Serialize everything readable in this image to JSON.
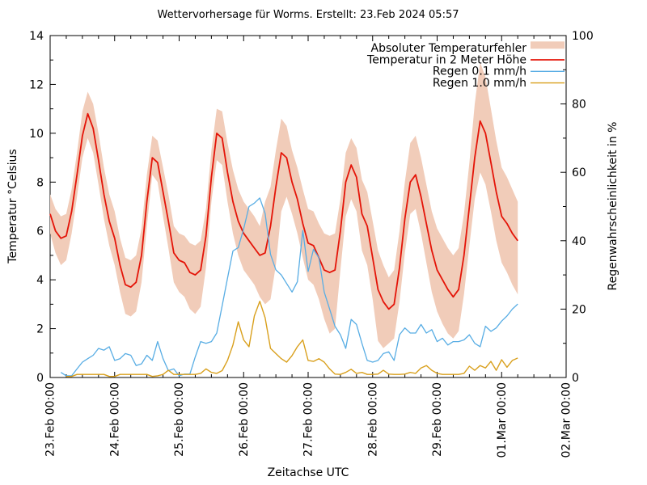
{
  "title": "Wettervorhersage für Worms. Erstellt: 23.Feb 2024 05:57",
  "axes": {
    "x": {
      "label": "Zeitachse UTC",
      "range_hours": [
        0,
        192
      ],
      "major_step_hours": 24,
      "minor_step_hours": 6,
      "tick_labels": [
        "23.Feb 00:00",
        "24.Feb 00:00",
        "25.Feb 00:00",
        "26.Feb 00:00",
        "27.Feb 00:00",
        "28.Feb 00:00",
        "29.Feb 00:00",
        "01.Mar 00:00",
        "02.Mar 00:00"
      ]
    },
    "y_left": {
      "label": "Temperatur °Celsius",
      "range": [
        0,
        14
      ],
      "ticks": [
        0,
        2,
        4,
        6,
        8,
        10,
        12,
        14
      ],
      "minor_step": 1
    },
    "y_right": {
      "label": "Regenwahrscheinlichkeit in %",
      "range": [
        0,
        100
      ],
      "ticks": [
        0,
        20,
        40,
        60,
        80,
        100
      ],
      "minor_step": 10
    }
  },
  "legend": {
    "position": "top-right-inside",
    "items": [
      {
        "label": "Absoluter Temperaturfehler",
        "swatch": "band",
        "color": "#f1ccb9"
      },
      {
        "label": "Temperatur in 2 Meter Höhe",
        "swatch": "line",
        "color": "#e41408"
      },
      {
        "label": "Regen 0.1 mm/h",
        "swatch": "line",
        "color": "#58ade4"
      },
      {
        "label": "Regen 1.0 mm/h",
        "swatch": "line",
        "color": "#d9a01d"
      }
    ]
  },
  "colors": {
    "background": "#ffffff",
    "border": "#000000",
    "error_band": "#f1ccb9",
    "temperature": "#e41408",
    "rain01": "#58ade4",
    "rain10": "#d9a01d"
  },
  "chart_data": {
    "type": "line",
    "title": "Wettervorhersage für Worms. Erstellt: 23.Feb 2024 05:57",
    "xlabel": "Zeitachse UTC",
    "ylabel_left": "Temperatur °Celsius",
    "ylabel_right": "Regenwahrscheinlichkeit in %",
    "x_axis_days": [
      "23.Feb",
      "24.Feb",
      "25.Feb",
      "26.Feb",
      "27.Feb",
      "28.Feb",
      "29.Feb",
      "01.Mar",
      "02.Mar"
    ],
    "xlim_hours": [
      0,
      192
    ],
    "ylim_left": [
      0,
      14
    ],
    "ylim_right": [
      0,
      100
    ],
    "grid": false,
    "x_hours": [
      0,
      2,
      4,
      6,
      8,
      10,
      12,
      14,
      16,
      18,
      20,
      22,
      24,
      26,
      28,
      30,
      32,
      34,
      36,
      38,
      40,
      42,
      44,
      46,
      48,
      50,
      52,
      54,
      56,
      58,
      60,
      62,
      64,
      66,
      68,
      70,
      72,
      74,
      76,
      78,
      80,
      82,
      84,
      86,
      88,
      90,
      92,
      94,
      96,
      98,
      100,
      102,
      104,
      106,
      108,
      110,
      112,
      114,
      116,
      118,
      120,
      122,
      124,
      126,
      128,
      130,
      132,
      134,
      136,
      138,
      140,
      142,
      144,
      146,
      148,
      150,
      152,
      154,
      156,
      158,
      160,
      162,
      164,
      166,
      168,
      170,
      172,
      174
    ],
    "series": [
      {
        "name": "Absoluter Temperaturfehler",
        "type": "band",
        "axis": "left",
        "color": "#f1ccb9",
        "lower": [
          5.9,
          5.1,
          4.6,
          4.8,
          5.9,
          7.4,
          9.0,
          9.8,
          9.2,
          7.9,
          6.5,
          5.4,
          4.6,
          3.5,
          2.6,
          2.5,
          2.7,
          3.9,
          6.2,
          8.3,
          8.0,
          6.6,
          5.3,
          3.9,
          3.5,
          3.3,
          2.8,
          2.6,
          2.9,
          4.5,
          7.2,
          8.9,
          8.7,
          7.2,
          5.9,
          5.0,
          4.4,
          4.1,
          3.8,
          3.3,
          3.0,
          3.2,
          4.6,
          6.8,
          7.4,
          6.7,
          5.9,
          4.9,
          4.0,
          3.8,
          3.2,
          2.4,
          1.8,
          2.0,
          4.4,
          6.6,
          7.3,
          6.8,
          5.2,
          4.6,
          3.2,
          1.5,
          1.2,
          1.4,
          1.6,
          3.1,
          5.1,
          6.7,
          6.9,
          5.9,
          4.7,
          3.5,
          2.7,
          2.2,
          1.8,
          1.6,
          1.9,
          3.4,
          5.4,
          7.3,
          8.4,
          7.9,
          6.8,
          5.6,
          4.7,
          4.3,
          3.8,
          3.4
        ],
        "upper": [
          7.5,
          6.9,
          6.6,
          6.7,
          7.7,
          9.2,
          10.9,
          11.7,
          11.2,
          10.0,
          8.6,
          7.5,
          6.8,
          5.7,
          4.9,
          4.8,
          5.0,
          6.1,
          8.3,
          9.9,
          9.7,
          8.6,
          7.5,
          6.2,
          5.9,
          5.8,
          5.5,
          5.4,
          5.6,
          6.9,
          9.3,
          11.0,
          10.9,
          9.6,
          8.5,
          7.7,
          7.2,
          6.9,
          6.6,
          6.2,
          7.2,
          7.8,
          9.3,
          10.6,
          10.3,
          9.3,
          8.6,
          7.7,
          6.9,
          6.8,
          6.3,
          5.9,
          5.8,
          5.9,
          7.3,
          9.2,
          9.8,
          9.4,
          8.1,
          7.6,
          6.4,
          5.2,
          4.6,
          4.1,
          4.4,
          6.0,
          8.0,
          9.6,
          9.9,
          9.0,
          7.9,
          6.8,
          6.1,
          5.7,
          5.3,
          5.0,
          5.3,
          6.7,
          8.8,
          11.2,
          12.9,
          12.3,
          11.0,
          9.7,
          8.6,
          8.2,
          7.7,
          7.2
        ]
      },
      {
        "name": "Temperatur in 2 Meter Höhe",
        "type": "line",
        "axis": "left",
        "color": "#e41408",
        "values": [
          6.7,
          6.0,
          5.7,
          5.8,
          6.8,
          8.3,
          9.9,
          10.8,
          10.2,
          8.9,
          7.5,
          6.4,
          5.7,
          4.6,
          3.8,
          3.7,
          3.9,
          5.0,
          7.2,
          9.0,
          8.8,
          7.6,
          6.4,
          5.1,
          4.8,
          4.7,
          4.3,
          4.2,
          4.4,
          5.8,
          8.2,
          10.0,
          9.8,
          8.4,
          7.2,
          6.4,
          5.9,
          5.6,
          5.3,
          5.0,
          5.1,
          6.2,
          7.8,
          9.2,
          9.0,
          8.0,
          7.3,
          6.3,
          5.5,
          5.4,
          4.9,
          4.4,
          4.3,
          4.4,
          6.0,
          8.0,
          8.7,
          8.2,
          6.7,
          6.2,
          4.9,
          3.6,
          3.1,
          2.8,
          3.0,
          4.5,
          6.5,
          8.0,
          8.3,
          7.4,
          6.3,
          5.2,
          4.4,
          4.0,
          3.6,
          3.3,
          3.6,
          5.0,
          7.0,
          9.0,
          10.5,
          10.0,
          8.8,
          7.6,
          6.6,
          6.3,
          5.9,
          5.6
        ]
      },
      {
        "name": "Regen 0.1 mm/h",
        "type": "line",
        "axis": "right",
        "color": "#58ade4",
        "values": [
          null,
          null,
          1.5,
          0.5,
          0.5,
          2.5,
          4.5,
          5.5,
          6.5,
          8.5,
          8.0,
          9.0,
          5.0,
          5.5,
          7.0,
          6.5,
          3.5,
          4.0,
          6.5,
          5.0,
          10.5,
          5.5,
          2.0,
          2.5,
          0.5,
          1.0,
          1.0,
          6.0,
          10.5,
          10.0,
          10.5,
          13.0,
          21.0,
          29.0,
          37.0,
          38.0,
          43.5,
          50.0,
          51.0,
          52.5,
          48.0,
          36.0,
          31.5,
          30.0,
          27.5,
          25.0,
          28.0,
          43.0,
          31.0,
          37.5,
          35.0,
          25.0,
          20.0,
          15.0,
          12.5,
          8.5,
          17.0,
          15.5,
          10.0,
          5.0,
          4.5,
          5.0,
          7.0,
          7.5,
          5.0,
          12.5,
          14.5,
          13.0,
          13.0,
          15.5,
          13.0,
          14.0,
          10.5,
          11.5,
          9.5,
          10.5,
          10.5,
          11.0,
          12.5,
          10.0,
          9.0,
          15.0,
          13.5,
          14.5,
          16.5,
          18.0,
          20.0,
          21.5
        ]
      },
      {
        "name": "Regen 1.0 mm/h",
        "type": "line",
        "axis": "right",
        "color": "#d9a01d",
        "values": [
          null,
          null,
          null,
          0.3,
          0.3,
          0.9,
          0.9,
          0.9,
          0.9,
          0.9,
          0.9,
          0.3,
          0.3,
          0.9,
          0.9,
          0.9,
          0.9,
          0.9,
          0.9,
          0.3,
          0.5,
          0.9,
          2.1,
          0.9,
          0.9,
          0.9,
          0.9,
          0.9,
          1.2,
          2.5,
          1.5,
          1.2,
          2.0,
          5.0,
          9.5,
          16.3,
          11.0,
          9.0,
          18.0,
          22.3,
          17.5,
          8.5,
          7.0,
          5.5,
          4.5,
          6.4,
          9.0,
          11.0,
          5.0,
          4.7,
          5.5,
          4.5,
          2.5,
          1.0,
          0.9,
          1.5,
          2.4,
          1.2,
          1.5,
          0.9,
          0.9,
          1.0,
          2.1,
          1.0,
          0.9,
          0.9,
          1.0,
          1.5,
          1.2,
          2.8,
          3.5,
          2.1,
          1.2,
          0.9,
          0.9,
          0.9,
          0.9,
          1.2,
          3.3,
          2.1,
          3.5,
          2.8,
          4.7,
          2.1,
          5.2,
          3.0,
          5.0,
          5.7
        ]
      }
    ]
  }
}
